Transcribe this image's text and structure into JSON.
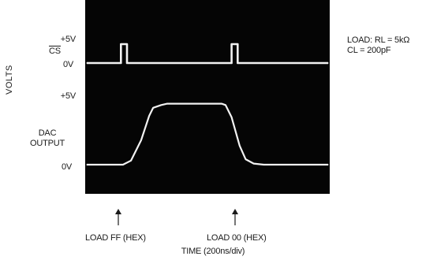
{
  "left_labels": {
    "cs_high": "+5V",
    "cs_name": "CS",
    "cs_low": "0V",
    "volts": "VOLTS",
    "out_high": "+5V",
    "out_name_1": "DAC",
    "out_name_2": "OUTPUT",
    "out_low": "0V"
  },
  "load_note": {
    "line1": "LOAD: RL = 5kΩ",
    "line2": "CL = 200pF"
  },
  "annotations": {
    "load_ff": "LOAD FF (HEX)",
    "load_00": "LOAD 00 (HEX)",
    "time_axis": "TIME (200ns/div)"
  },
  "colors": {
    "screen": "#050505",
    "trace": "#f2f2f2",
    "text": "#1a1a1a"
  },
  "chart_data": {
    "type": "line",
    "xlabel": "TIME (200ns/div)",
    "ylabel": "VOLTS",
    "x_unit": "ns",
    "xlim": [
      0,
      1200
    ],
    "series": [
      {
        "name": "CS",
        "low_label": "0V",
        "high_label": "+5V",
        "x": [
          0,
          170,
          170,
          200,
          200,
          720,
          720,
          750,
          750,
          1200
        ],
        "y": [
          0,
          0,
          5,
          5,
          0,
          0,
          5,
          5,
          0,
          0
        ]
      },
      {
        "name": "DAC OUTPUT",
        "low_label": "0V",
        "high_label": "+5V",
        "x": [
          0,
          180,
          220,
          270,
          310,
          330,
          370,
          400,
          670,
          690,
          720,
          760,
          790,
          830,
          880,
          1200
        ],
        "y": [
          0,
          0,
          0.3,
          1.8,
          3.6,
          4.2,
          4.4,
          4.5,
          4.5,
          4.4,
          3.5,
          1.4,
          0.4,
          0.08,
          0,
          0
        ]
      }
    ]
  }
}
